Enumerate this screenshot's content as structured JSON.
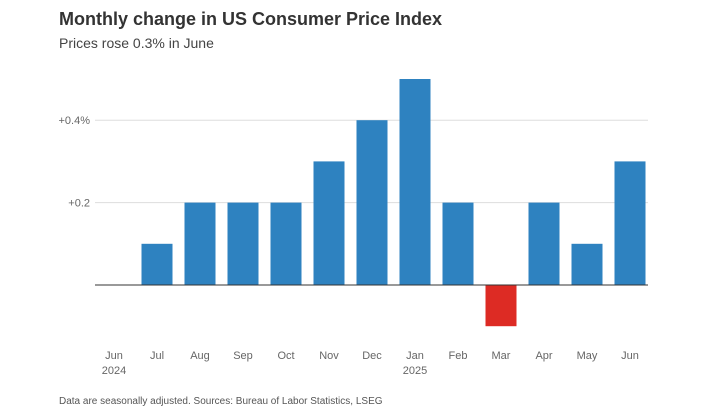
{
  "title": "Monthly change in US Consumer Price Index",
  "subtitle": "Prices rose 0.3% in June",
  "footer": "Data are seasonally adjusted. Sources: Bureau of Labor Statistics, LSEG",
  "chart_data": {
    "type": "bar",
    "categories": [
      "Jun",
      "Jul",
      "Aug",
      "Sep",
      "Oct",
      "Nov",
      "Dec",
      "Jan",
      "Feb",
      "Mar",
      "Apr",
      "May",
      "Jun"
    ],
    "year_labels": [
      "2024",
      "",
      "",
      "",
      "",
      "",
      "",
      "2025",
      "",
      "",
      "",
      "",
      ""
    ],
    "values": [
      0.0,
      0.1,
      0.2,
      0.2,
      0.2,
      0.3,
      0.4,
      0.5,
      0.2,
      -0.1,
      0.2,
      0.1,
      0.3
    ],
    "yticks": [
      {
        "value": 0.4,
        "label": "+0.4%"
      },
      {
        "value": 0.2,
        "label": "+0.2"
      }
    ],
    "ylim": [
      -0.1,
      0.5
    ],
    "positive_color": "#2e82c0",
    "negative_color": "#dd2b24",
    "grid_color": "#dddddd",
    "grid": true
  }
}
